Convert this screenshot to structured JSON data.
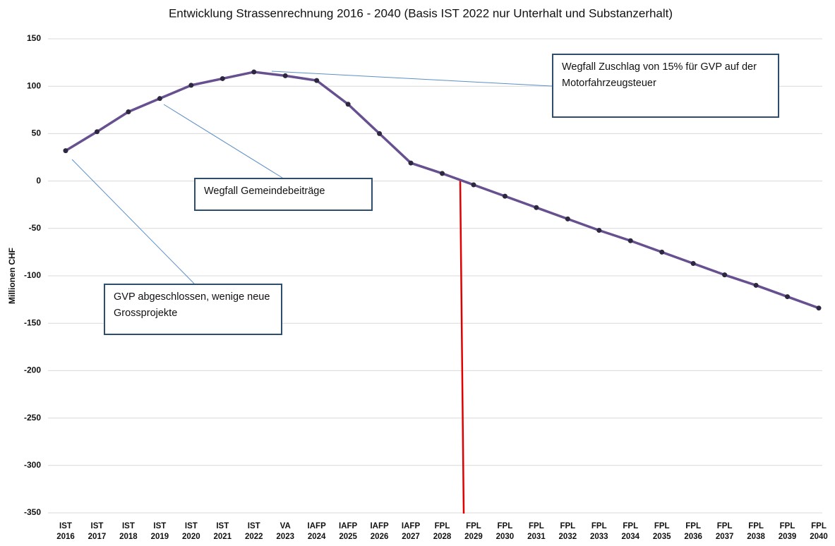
{
  "chart_data": {
    "type": "line",
    "title": "Entwicklung Strassenrechnung 2016 - 2040 (Basis IST 2022 nur Unterhalt und Substanzerhalt)",
    "y_label": "Millionen CHF",
    "categories": [
      "IST 2016",
      "IST 2017",
      "IST 2018",
      "IST 2019",
      "IST 2020",
      "IST 2021",
      "IST 2022",
      "VA 2023",
      "IAFP 2024",
      "IAFP 2025",
      "IAFP 2026",
      "IAFP 2027",
      "FPL 2028",
      "FPL 2029",
      "FPL 2030",
      "FPL 2031",
      "FPL 2032",
      "FPL 2033",
      "FPL 2034",
      "FPL 2035",
      "FPL 2036",
      "FPL 2037",
      "FPL 2038",
      "FPL 2039",
      "FPL 2040"
    ],
    "values": [
      32,
      52,
      73,
      87,
      101,
      108,
      115,
      111,
      106,
      81,
      50,
      19,
      8,
      -4,
      -16,
      -28,
      -40,
      -52,
      -63,
      -75,
      -87,
      -99,
      -110,
      -122,
      -134
    ],
    "color": "#67508f",
    "marker_color": "#2e2740",
    "ylim": [
      -350,
      150
    ],
    "yticks": [
      150,
      100,
      50,
      0,
      -50,
      -100,
      -150,
      -200,
      -250,
      -300,
      -350
    ],
    "grid": true,
    "annotations": [
      "Wegfall Zuschlag von 15% für GVP auf der Motorfahrzeugsteuer",
      "Wegfall Gemeindebeiträge",
      "GVP abgeschlossen, wenige neue Grossprojekte"
    ]
  }
}
